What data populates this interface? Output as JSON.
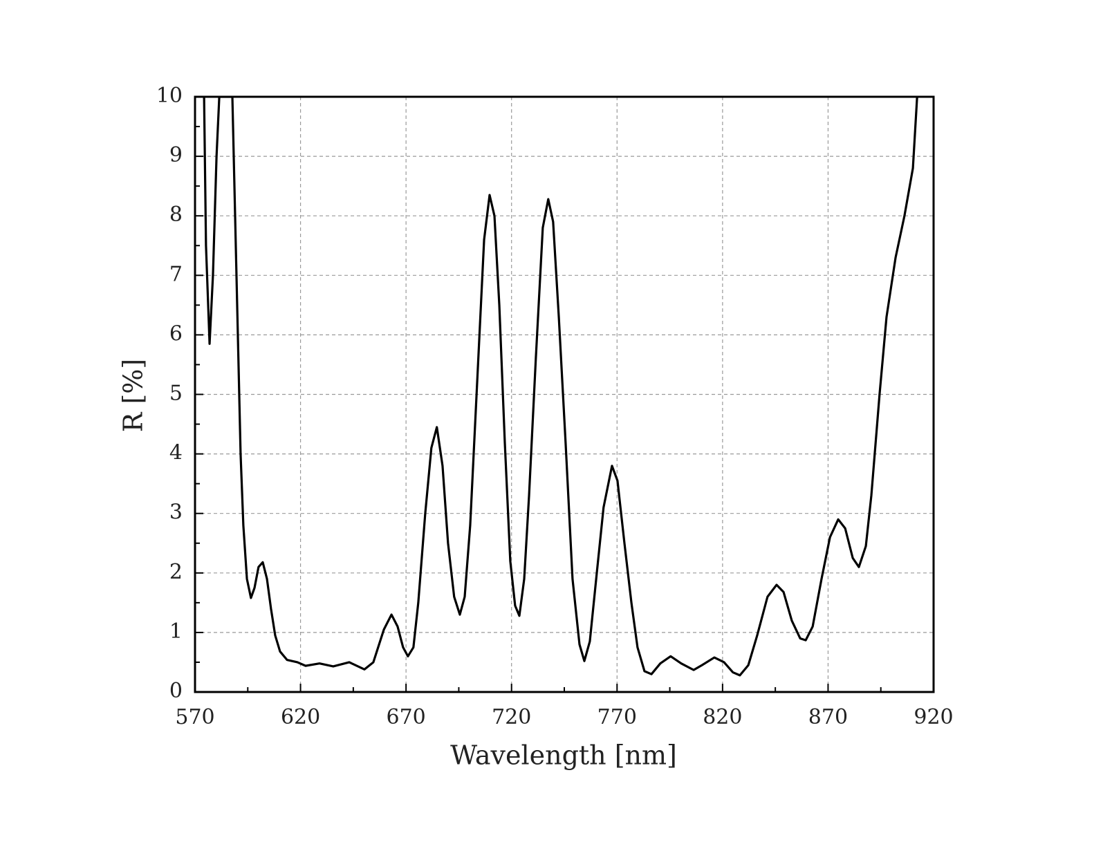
{
  "chart_data": {
    "type": "line",
    "xlabel": "Wavelength [nm]",
    "ylabel": "R [%]",
    "xlim": [
      570,
      920
    ],
    "ylim": [
      0,
      10
    ],
    "xticks": [
      570,
      620,
      670,
      720,
      770,
      820,
      870,
      920
    ],
    "yticks": [
      0,
      1,
      2,
      3,
      4,
      5,
      6,
      7,
      8,
      9,
      10
    ],
    "xminorticks": [
      595,
      645,
      695,
      745,
      795,
      845,
      895
    ],
    "yminorticks": [
      0.5,
      1.5,
      2.5,
      3.5,
      4.5,
      5.5,
      6.5,
      7.5,
      8.5,
      9.5
    ],
    "grid": true,
    "series": [
      {
        "color": "#000000",
        "x": [
          574.3,
          575.2,
          576.9,
          578.5,
          580.2,
          581.5,
          587.7,
          589,
          590.3,
          591.6,
          592.9,
          594.6,
          596.5,
          598.2,
          600.1,
          602.1,
          604.1,
          606,
          608,
          610.3,
          613.6,
          618.5,
          622.4,
          629,
          635.5,
          643.1,
          650.3,
          654.5,
          659.5,
          663.1,
          666,
          668.6,
          670.9,
          673.5,
          675.8,
          679.1,
          682,
          684.6,
          687.3,
          689.9,
          692.8,
          695.5,
          697.8,
          700.4,
          703.7,
          707,
          709.6,
          711.9,
          714.2,
          716.8,
          719.4,
          721.7,
          723.7,
          726,
          728.3,
          731.5,
          734.8,
          737.4,
          739.7,
          742.4,
          745.6,
          748.9,
          752.2,
          754.5,
          757.1,
          760.4,
          763.6,
          767.6,
          770.2,
          773.5,
          776.8,
          779.7,
          783,
          786.3,
          790.5,
          795.4,
          800.4,
          806.3,
          810.2,
          816.1,
          820.7,
          824.9,
          828.2,
          832.2,
          836.4,
          841.3,
          845.6,
          848.9,
          852.8,
          856.8,
          859.4,
          862.7,
          866.9,
          870.9,
          874.8,
          878.1,
          881.7,
          884.6,
          887.9,
          890.5,
          894.4,
          897.7,
          902,
          906.2,
          910.2,
          912.2
        ],
        "values": [
          10,
          7.5,
          5.85,
          7,
          9,
          10,
          10,
          8,
          6,
          4,
          2.8,
          1.9,
          1.58,
          1.75,
          2.1,
          2.18,
          1.9,
          1.4,
          0.95,
          0.68,
          0.54,
          0.5,
          0.44,
          0.48,
          0.43,
          0.5,
          0.38,
          0.5,
          1.05,
          1.3,
          1.1,
          0.75,
          0.6,
          0.75,
          1.5,
          3.0,
          4.1,
          4.45,
          3.8,
          2.5,
          1.6,
          1.3,
          1.6,
          2.8,
          5.2,
          7.6,
          8.35,
          8.0,
          6.5,
          4.2,
          2.2,
          1.45,
          1.28,
          1.9,
          3.3,
          5.6,
          7.8,
          8.28,
          7.9,
          6.3,
          4.2,
          1.9,
          0.8,
          0.52,
          0.85,
          2.0,
          3.1,
          3.8,
          3.55,
          2.5,
          1.5,
          0.75,
          0.35,
          0.3,
          0.48,
          0.6,
          0.48,
          0.37,
          0.45,
          0.58,
          0.5,
          0.33,
          0.28,
          0.45,
          0.95,
          1.6,
          1.8,
          1.68,
          1.2,
          0.9,
          0.87,
          1.1,
          1.9,
          2.6,
          2.9,
          2.75,
          2.25,
          2.1,
          2.45,
          3.3,
          5.0,
          6.3,
          7.3,
          8.0,
          8.8,
          10
        ]
      }
    ]
  }
}
